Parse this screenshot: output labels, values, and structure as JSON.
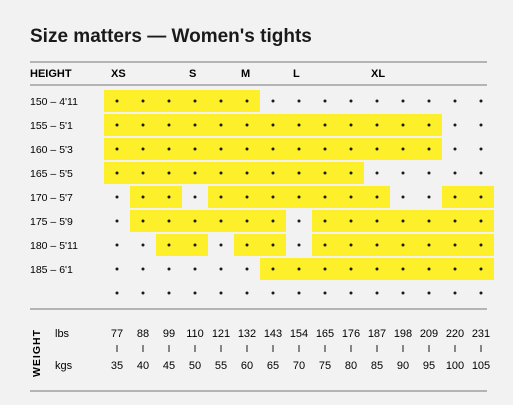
{
  "chart_data": {
    "type": "heatmap",
    "title": "Size matters — Women's tights",
    "row_header": "HEIGHT",
    "size_labels": [
      "XS",
      "S",
      "M",
      "L",
      "XL"
    ],
    "size_label_columns": [
      0,
      3,
      5,
      7,
      10
    ],
    "rows": [
      "150 – 4'11",
      "155 – 5'1",
      "160 – 5'3",
      "165 – 5'5",
      "170 – 5'7",
      "175 – 5'9",
      "180 – 5'11",
      "185 – 6'1",
      ""
    ],
    "weight_axis_label": "WEIGHT",
    "lbs_label": "lbs",
    "kgs_label": "kgs",
    "lbs": [
      "77",
      "88",
      "99",
      "110",
      "121",
      "132",
      "143",
      "154",
      "165",
      "176",
      "187",
      "198",
      "209",
      "220",
      "231"
    ],
    "kgs": [
      "35",
      "40",
      "45",
      "50",
      "55",
      "60",
      "65",
      "70",
      "75",
      "80",
      "85",
      "90",
      "95",
      "100",
      "105"
    ],
    "highlight_color": "#fdf02a",
    "highlighted_cells": [
      [
        [
          0,
          3
        ],
        [
          3,
          6
        ]
      ],
      [
        [
          0,
          3
        ],
        [
          3,
          6
        ],
        [
          6,
          10
        ],
        [
          10,
          13
        ]
      ],
      [
        [
          0,
          3
        ],
        [
          3,
          6
        ],
        [
          6,
          10
        ],
        [
          10,
          13
        ]
      ],
      [
        [
          0,
          3
        ],
        [
          3,
          7
        ],
        [
          7,
          10
        ]
      ],
      [
        [
          1,
          3
        ],
        [
          4,
          7
        ],
        [
          7,
          11
        ],
        [
          13,
          15
        ]
      ],
      [
        [
          1,
          4
        ],
        [
          4,
          7
        ],
        [
          8,
          11
        ],
        [
          11,
          15
        ]
      ],
      [
        [
          2,
          4
        ],
        [
          5,
          7
        ],
        [
          8,
          11
        ],
        [
          11,
          15
        ]
      ],
      [
        [
          6,
          7
        ],
        [
          7,
          11
        ],
        [
          11,
          15
        ]
      ],
      []
    ]
  }
}
